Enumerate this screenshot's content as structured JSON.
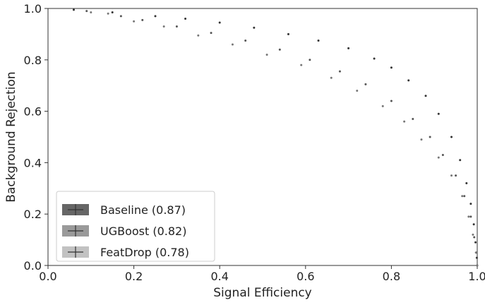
{
  "chart_data": {
    "type": "scatter",
    "title": "",
    "xlabel": "Signal Efficiency",
    "ylabel": "Background Rejection",
    "xlim": [
      0.0,
      1.0
    ],
    "ylim": [
      0.0,
      1.0
    ],
    "x_ticks": [
      "0.0",
      "0.2",
      "0.4",
      "0.6",
      "0.8",
      "1.0"
    ],
    "y_ticks": [
      "0.0",
      "0.2",
      "0.4",
      "0.6",
      "0.8",
      "1.0"
    ],
    "grid": false,
    "legend_position": "lower-left",
    "series": [
      {
        "name": "Baseline (0.87)",
        "color": "#333333",
        "x": [
          0.06,
          0.15,
          0.25,
          0.32,
          0.4,
          0.48,
          0.56,
          0.63,
          0.7,
          0.76,
          0.8,
          0.84,
          0.88,
          0.91,
          0.94,
          0.96,
          0.975,
          0.985,
          0.992,
          0.996,
          0.999,
          1.0
        ],
        "y": [
          0.995,
          0.985,
          0.97,
          0.96,
          0.945,
          0.925,
          0.9,
          0.875,
          0.845,
          0.805,
          0.77,
          0.72,
          0.66,
          0.59,
          0.5,
          0.41,
          0.32,
          0.24,
          0.16,
          0.09,
          0.03,
          0.0
        ]
      },
      {
        "name": "UGBoost (0.82)",
        "color": "#555555",
        "x": [
          0.09,
          0.17,
          0.22,
          0.3,
          0.38,
          0.46,
          0.54,
          0.61,
          0.68,
          0.74,
          0.8,
          0.85,
          0.89,
          0.92,
          0.95,
          0.97,
          0.985,
          0.993,
          0.998,
          1.0
        ],
        "y": [
          0.99,
          0.97,
          0.955,
          0.93,
          0.905,
          0.875,
          0.84,
          0.8,
          0.755,
          0.705,
          0.64,
          0.57,
          0.5,
          0.43,
          0.35,
          0.27,
          0.19,
          0.11,
          0.05,
          0.0
        ]
      },
      {
        "name": "FeatDrop (0.78)",
        "color": "#777777",
        "x": [
          0.1,
          0.14,
          0.2,
          0.27,
          0.35,
          0.43,
          0.51,
          0.59,
          0.66,
          0.72,
          0.78,
          0.83,
          0.87,
          0.91,
          0.94,
          0.965,
          0.98,
          0.99,
          0.997,
          1.0
        ],
        "y": [
          0.985,
          0.98,
          0.95,
          0.93,
          0.895,
          0.86,
          0.82,
          0.78,
          0.73,
          0.68,
          0.62,
          0.56,
          0.49,
          0.42,
          0.35,
          0.27,
          0.19,
          0.12,
          0.05,
          0.0
        ]
      }
    ]
  },
  "legend": {
    "items": [
      {
        "label": "Baseline (0.87)",
        "color": "#666666"
      },
      {
        "label": "UGBoost (0.82)",
        "color": "#9a9a9a"
      },
      {
        "label": "FeatDrop (0.78)",
        "color": "#c2c2c2"
      }
    ]
  }
}
